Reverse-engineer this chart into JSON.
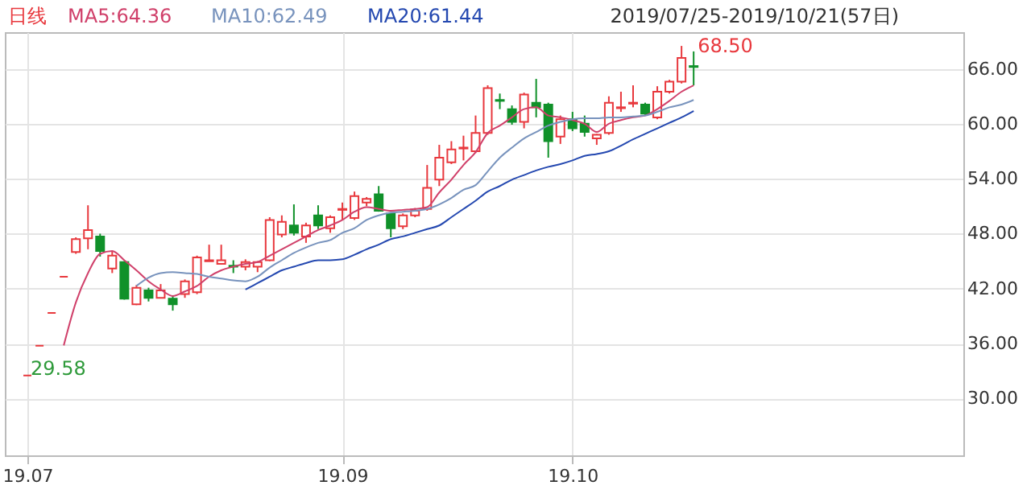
{
  "chart_data": {
    "type": "candlestick",
    "title": "日线",
    "subtitle": "2019/07/25-2019/10/21(57日)",
    "categories": [
      "19.07",
      null,
      null,
      null,
      null,
      null,
      null,
      null,
      null,
      null,
      null,
      null,
      null,
      null,
      null,
      null,
      null,
      null,
      null,
      null,
      null,
      null,
      null,
      null,
      null,
      null,
      "19.09",
      null,
      null,
      null,
      null,
      null,
      null,
      null,
      null,
      null,
      null,
      null,
      null,
      null,
      null,
      null,
      null,
      null,
      null,
      "19.10",
      null,
      null,
      null,
      null,
      null,
      null,
      null,
      null,
      null,
      null
    ],
    "ohlc": [
      [
        32.52,
        32.52,
        32.52,
        32.52
      ],
      [
        35.77,
        35.77,
        35.77,
        35.77
      ],
      [
        39.35,
        39.35,
        39.35,
        39.35
      ],
      [
        43.29,
        43.29,
        43.29,
        43.29
      ],
      [
        46.0,
        47.6,
        45.8,
        47.4
      ],
      [
        47.5,
        51.1,
        46.3,
        48.4
      ],
      [
        47.7,
        48.0,
        45.5,
        46.1
      ],
      [
        44.2,
        46.1,
        43.7,
        45.6
      ],
      [
        44.9,
        45.0,
        40.8,
        40.9
      ],
      [
        40.3,
        42.4,
        40.2,
        42.1
      ],
      [
        41.8,
        42.1,
        40.6,
        41.0
      ],
      [
        41.0,
        42.5,
        41.0,
        41.8
      ],
      [
        40.9,
        41.2,
        39.6,
        40.3
      ],
      [
        41.4,
        43.0,
        41.0,
        42.8
      ],
      [
        41.6,
        45.6,
        41.4,
        45.4
      ],
      [
        45.0,
        46.8,
        45.0,
        45.1
      ],
      [
        44.7,
        46.8,
        44.7,
        45.1
      ],
      [
        44.5,
        45.1,
        43.7,
        44.4
      ],
      [
        44.4,
        45.2,
        44.0,
        44.9
      ],
      [
        44.4,
        45.0,
        43.8,
        44.9
      ],
      [
        45.1,
        49.8,
        45.0,
        49.5
      ],
      [
        47.9,
        50.0,
        47.6,
        49.3
      ],
      [
        48.9,
        51.2,
        47.8,
        48.1
      ],
      [
        47.7,
        49.2,
        47.0,
        48.9
      ],
      [
        50.0,
        51.1,
        48.5,
        48.9
      ],
      [
        48.6,
        50.0,
        48.1,
        49.8
      ],
      [
        50.6,
        51.4,
        49.5,
        50.7
      ],
      [
        49.7,
        52.6,
        49.5,
        52.1
      ],
      [
        51.4,
        52.0,
        51.0,
        51.8
      ],
      [
        52.3,
        53.2,
        50.4,
        50.5
      ],
      [
        50.2,
        50.3,
        47.6,
        48.6
      ],
      [
        48.8,
        50.2,
        48.5,
        50.0
      ],
      [
        50.0,
        50.8,
        49.8,
        50.5
      ],
      [
        50.7,
        55.5,
        50.5,
        53.0
      ],
      [
        53.9,
        57.7,
        53.2,
        56.3
      ],
      [
        55.8,
        58.1,
        55.6,
        57.2
      ],
      [
        57.3,
        58.7,
        56.0,
        57.4
      ],
      [
        57.0,
        60.9,
        56.8,
        59.0
      ],
      [
        59.0,
        64.2,
        58.8,
        63.9
      ],
      [
        62.6,
        63.3,
        61.6,
        62.5
      ],
      [
        61.6,
        62.0,
        59.9,
        60.2
      ],
      [
        60.2,
        63.4,
        59.5,
        63.2
      ],
      [
        62.3,
        64.9,
        60.7,
        61.8
      ],
      [
        62.1,
        62.3,
        56.3,
        58.1
      ],
      [
        58.6,
        60.9,
        57.8,
        60.5
      ],
      [
        60.5,
        61.3,
        59.2,
        59.5
      ],
      [
        60.0,
        60.9,
        58.6,
        59.1
      ],
      [
        58.4,
        58.9,
        57.7,
        58.8
      ],
      [
        59.0,
        63.0,
        58.8,
        62.3
      ],
      [
        61.7,
        63.5,
        61.3,
        61.8
      ],
      [
        62.2,
        64.2,
        61.8,
        62.3
      ],
      [
        62.1,
        62.3,
        60.9,
        61.1
      ],
      [
        60.7,
        64.1,
        60.5,
        63.5
      ],
      [
        63.5,
        64.8,
        63.3,
        64.6
      ],
      [
        64.6,
        68.5,
        64.4,
        67.2
      ],
      [
        66.3,
        67.9,
        64.2,
        66.2
      ]
    ],
    "colors": [
      "#e8383d",
      "#e8383d",
      "#e8383d",
      "#e8383d",
      "#e8383d",
      "#e8383d",
      "#10912a",
      "#e8383d",
      "#10912a",
      "#e8383d",
      "#10912a",
      "#e8383d",
      "#10912a",
      "#e8383d",
      "#e8383d",
      "#e8383d",
      "#e8383d",
      "#10912a",
      "#e8383d",
      "#e8383d",
      "#e8383d",
      "#e8383d",
      "#10912a",
      "#e8383d",
      "#10912a",
      "#e8383d",
      "#e8383d",
      "#e8383d",
      "#e8383d",
      "#10912a",
      "#10912a",
      "#e8383d",
      "#e8383d",
      "#e8383d",
      "#e8383d",
      "#e8383d",
      "#e8383d",
      "#e8383d",
      "#e8383d",
      "#10912a",
      "#10912a",
      "#e8383d",
      "#10912a",
      "#10912a",
      "#e8383d",
      "#10912a",
      "#10912a",
      "#e8383d",
      "#e8383d",
      "#e8383d",
      "#e8383d",
      "#10912a",
      "#e8383d",
      "#e8383d",
      "#e8383d",
      "#10912a"
    ],
    "series": [
      {
        "name": "MA5:64.36",
        "type": "line",
        "color": "#d0406a",
        "values": [
          null,
          null,
          null,
          35.8,
          40.5,
          43.7,
          45.8,
          46.1,
          45.1,
          44.0,
          42.8,
          41.9,
          41.2,
          41.7,
          42.3,
          43.3,
          44.0,
          44.4,
          44.7,
          44.9,
          45.6,
          46.3,
          47.0,
          47.7,
          48.4,
          48.9,
          49.5,
          50.4,
          50.9,
          50.7,
          50.5,
          50.6,
          50.7,
          50.9,
          52.5,
          53.9,
          55.5,
          56.9,
          59.0,
          59.8,
          60.7,
          61.6,
          61.8,
          60.9,
          60.7,
          60.4,
          60.0,
          59.1,
          60.0,
          60.4,
          60.7,
          60.9,
          61.6,
          62.5,
          63.5,
          64.2
        ]
      },
      {
        "name": "MA10:62.49",
        "type": "line",
        "color": "#7893bd",
        "values": [
          null,
          null,
          null,
          null,
          null,
          null,
          null,
          null,
          null,
          42.3,
          43.2,
          43.7,
          43.8,
          43.7,
          43.6,
          43.3,
          43.1,
          42.9,
          42.8,
          43.3,
          44.3,
          45.1,
          45.9,
          46.5,
          47.0,
          47.3,
          48.1,
          48.6,
          49.5,
          50.0,
          50.3,
          50.4,
          50.5,
          50.7,
          51.2,
          51.9,
          52.8,
          53.3,
          54.8,
          56.3,
          57.4,
          58.4,
          59.1,
          59.8,
          60.2,
          60.5,
          60.6,
          60.6,
          60.7,
          60.7,
          60.8,
          60.9,
          61.3,
          61.8,
          62.1,
          62.6
        ]
      },
      {
        "name": "MA20:61.44",
        "type": "line",
        "color": "#2448b0",
        "values": [
          null,
          null,
          null,
          null,
          null,
          null,
          null,
          null,
          null,
          null,
          null,
          null,
          null,
          null,
          null,
          null,
          null,
          null,
          41.9,
          42.6,
          43.3,
          44.0,
          44.4,
          44.8,
          45.1,
          45.1,
          45.2,
          45.7,
          46.3,
          46.8,
          47.4,
          47.7,
          48.1,
          48.5,
          48.9,
          49.8,
          50.7,
          51.6,
          52.6,
          53.2,
          53.9,
          54.4,
          54.9,
          55.3,
          55.6,
          56.0,
          56.5,
          56.7,
          57.0,
          57.6,
          58.3,
          58.9,
          59.5,
          60.1,
          60.7,
          61.4
        ]
      }
    ],
    "ylim": [
      23.8,
      70.0
    ],
    "yticks": [
      {
        "value": 30,
        "label": "30.00"
      },
      {
        "value": 36,
        "label": "36.00"
      },
      {
        "value": 42,
        "label": "42.00"
      },
      {
        "value": 48,
        "label": "48.00"
      },
      {
        "value": 54,
        "label": "54.00"
      },
      {
        "value": 60,
        "label": "60.00"
      },
      {
        "value": 66,
        "label": "66.00"
      }
    ],
    "annotations": [
      "68.50",
      "29.58"
    ],
    "grid": true
  }
}
